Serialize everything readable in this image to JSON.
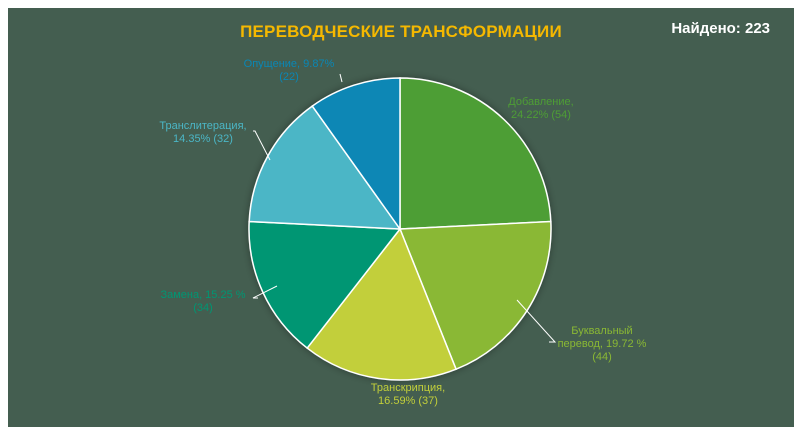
{
  "header": {
    "title": "ПЕРЕВОДЧЕСКИЕ ТРАНСФОРМАЦИИ",
    "found": "Найдено: 223"
  },
  "chart_data": {
    "type": "pie",
    "title": "ПЕРЕВОДЧЕСКИЕ ТРАНСФОРМАЦИИ",
    "total": 223,
    "series": [
      {
        "name": "Добавление",
        "value": 54,
        "percent": "24.22%",
        "color": "#4e9e35",
        "label_lines": [
          "Добавление,",
          "24.22% (54)"
        ]
      },
      {
        "name": "Буквальный перевод",
        "value": 44,
        "percent": "19.72 %",
        "color": "#8ab834",
        "label_lines": [
          "Буквальный",
          "перевод, 19.72 %",
          "(44)"
        ]
      },
      {
        "name": "Транскрипция",
        "value": 37,
        "percent": "16.59%",
        "color": "#c2cf3a",
        "label_lines": [
          "Транскрипция,",
          "16.59% (37)"
        ]
      },
      {
        "name": "Замена",
        "value": 34,
        "percent": "15.25 %",
        "color": "#009673",
        "label_lines": [
          "Замена, 15.25 %",
          "(34)"
        ]
      },
      {
        "name": "Транслитерация",
        "value": 32,
        "percent": "14.35%",
        "color": "#4bb6c6",
        "label_lines": [
          "Транслитерация,",
          "14.35% (32)"
        ]
      },
      {
        "name": "Опущение",
        "value": 22,
        "percent": "9.87%",
        "color": "#0a87b5",
        "label_lines": [
          "Опущение, 9.87%",
          "(22)"
        ]
      }
    ]
  }
}
